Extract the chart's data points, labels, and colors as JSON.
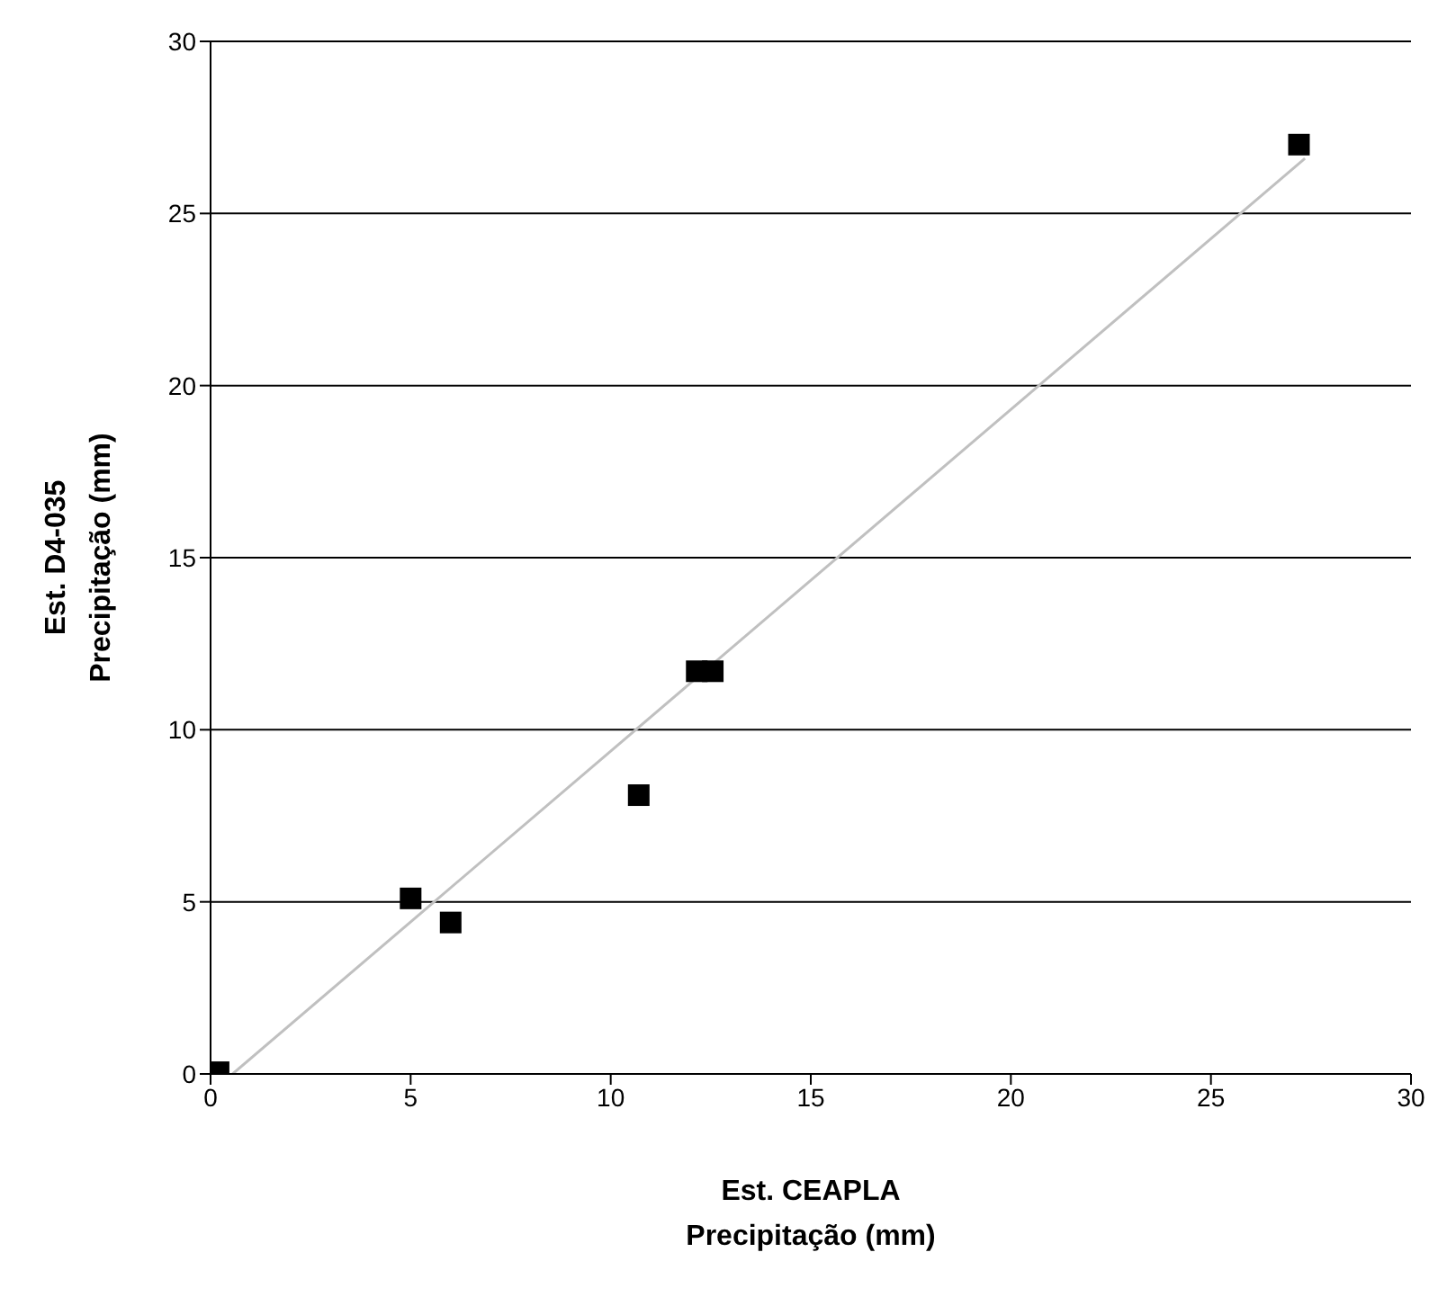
{
  "chart_data": {
    "type": "scatter",
    "xlabel": "Est. CEAPLA\nPrecipitação (mm)",
    "ylabel": "Est. D4-035\nPrecipitação (mm)",
    "series": [
      {
        "color": "#000000",
        "marker": "square",
        "x": [
          0.2,
          5.0,
          6.0,
          10.7,
          12.15,
          12.55,
          27.2
        ],
        "values": [
          0.05,
          5.1,
          4.4,
          8.1,
          11.7,
          11.7,
          27.0
        ]
      },
      {
        "type": "line",
        "color": "#c0c0c0",
        "marker": "none",
        "x": [
          0.55,
          27.35
        ],
        "values": [
          0,
          26.6
        ]
      }
    ],
    "xlim": [
      0,
      30
    ],
    "xticks": [
      0,
      5,
      10,
      15,
      20,
      25,
      30
    ],
    "ylim": [
      0,
      30
    ],
    "yticks": [
      0,
      5,
      10,
      15,
      20,
      25,
      30
    ],
    "grid": "y"
  }
}
